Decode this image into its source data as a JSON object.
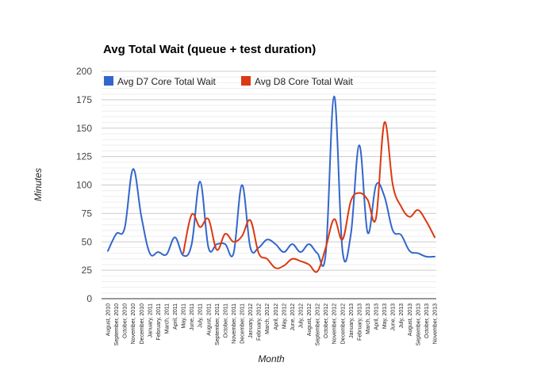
{
  "chart_data": {
    "type": "line",
    "title": "Avg Total Wait (queue + test duration)",
    "xlabel": "Month",
    "ylabel": "Minutes",
    "ylim": [
      0,
      200
    ],
    "yticks": [
      0,
      25,
      50,
      75,
      100,
      125,
      150,
      175,
      200
    ],
    "grid": true,
    "legend_position": "top",
    "categories": [
      "August, 2010",
      "September, 2010",
      "October, 2010",
      "November, 2010",
      "December, 2010",
      "January, 2011",
      "February, 2011",
      "March, 2011",
      "April, 2011",
      "May, 2011",
      "June, 2011",
      "July, 2011",
      "August, 2011",
      "September, 2011",
      "October, 2011",
      "November, 2011",
      "December, 2011",
      "January, 2012",
      "February, 2012",
      "March, 2012",
      "April, 2012",
      "May, 2012",
      "June, 2012",
      "July, 2012",
      "August, 2012",
      "September, 2012",
      "October, 2012",
      "November, 2012",
      "December, 2012",
      "January, 2013",
      "February, 2013",
      "March, 2013",
      "April, 2013",
      "May, 2013",
      "June, 2013",
      "July, 2013",
      "August, 2013",
      "September, 2013",
      "October, 2013",
      "November, 2013"
    ],
    "series": [
      {
        "name": "Avg D7 Core Total Wait",
        "color": "#3366cc",
        "values": [
          42,
          57,
          62,
          114,
          72,
          40,
          41,
          39,
          54,
          38,
          48,
          103,
          45,
          48,
          48,
          40,
          100,
          45,
          45,
          52,
          48,
          41,
          48,
          41,
          48,
          40,
          40,
          178,
          42,
          57,
          135,
          58,
          100,
          90,
          60,
          56,
          42,
          40,
          37,
          37
        ]
      },
      {
        "name": "Avg D8 Core Total Wait",
        "color": "#dc3912",
        "values": [
          null,
          null,
          null,
          null,
          null,
          null,
          null,
          null,
          null,
          40,
          74,
          63,
          70,
          43,
          57,
          50,
          55,
          69,
          40,
          35,
          27,
          29,
          35,
          33,
          30,
          24,
          45,
          70,
          52,
          86,
          93,
          87,
          71,
          155,
          100,
          81,
          72,
          78,
          68,
          54
        ]
      }
    ]
  }
}
